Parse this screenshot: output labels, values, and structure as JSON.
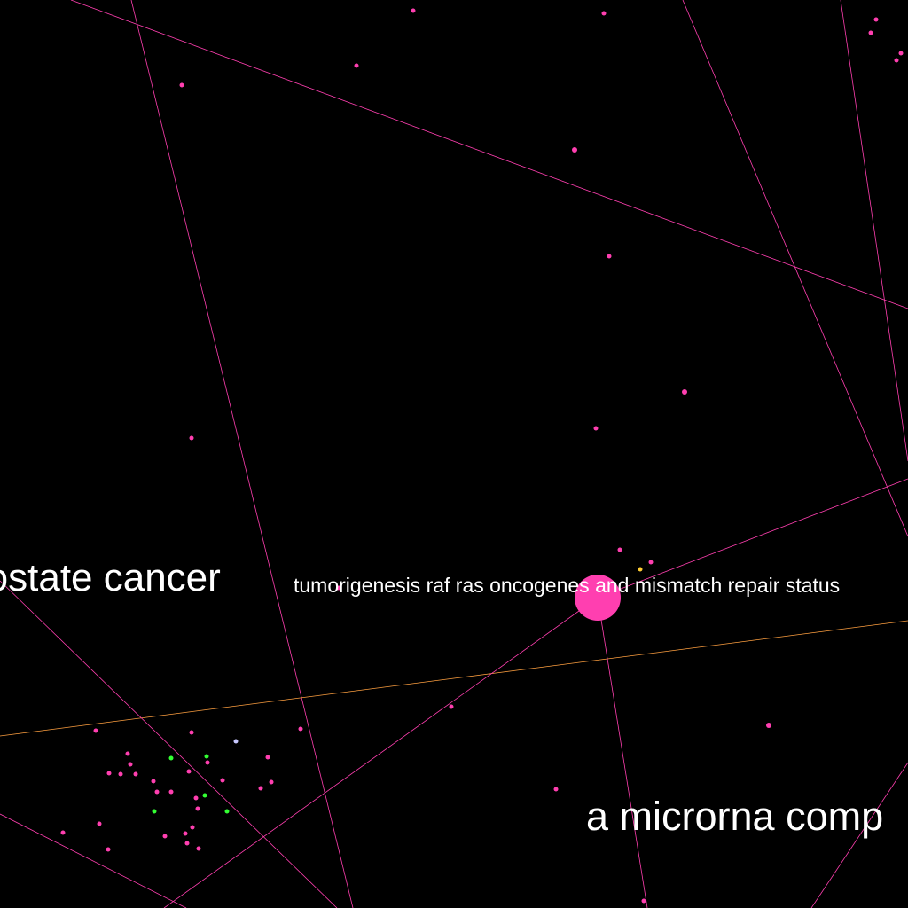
{
  "colors": {
    "background": "#000000",
    "edge_pink": "#ff3fb0",
    "edge_orange": "#ffa040",
    "node_pink": "#ff3fb0",
    "node_green": "#33ff33",
    "node_yellow": "#ffcc33",
    "node_lavender": "#c8c8ff",
    "label": "#ffffff"
  },
  "labels": {
    "prostate_cancer": "rostate cancer",
    "tumorigenesis": "tumorigenesis raf ras oncogenes and mismatch repair status",
    "microrna": "a microrna comp"
  }
}
